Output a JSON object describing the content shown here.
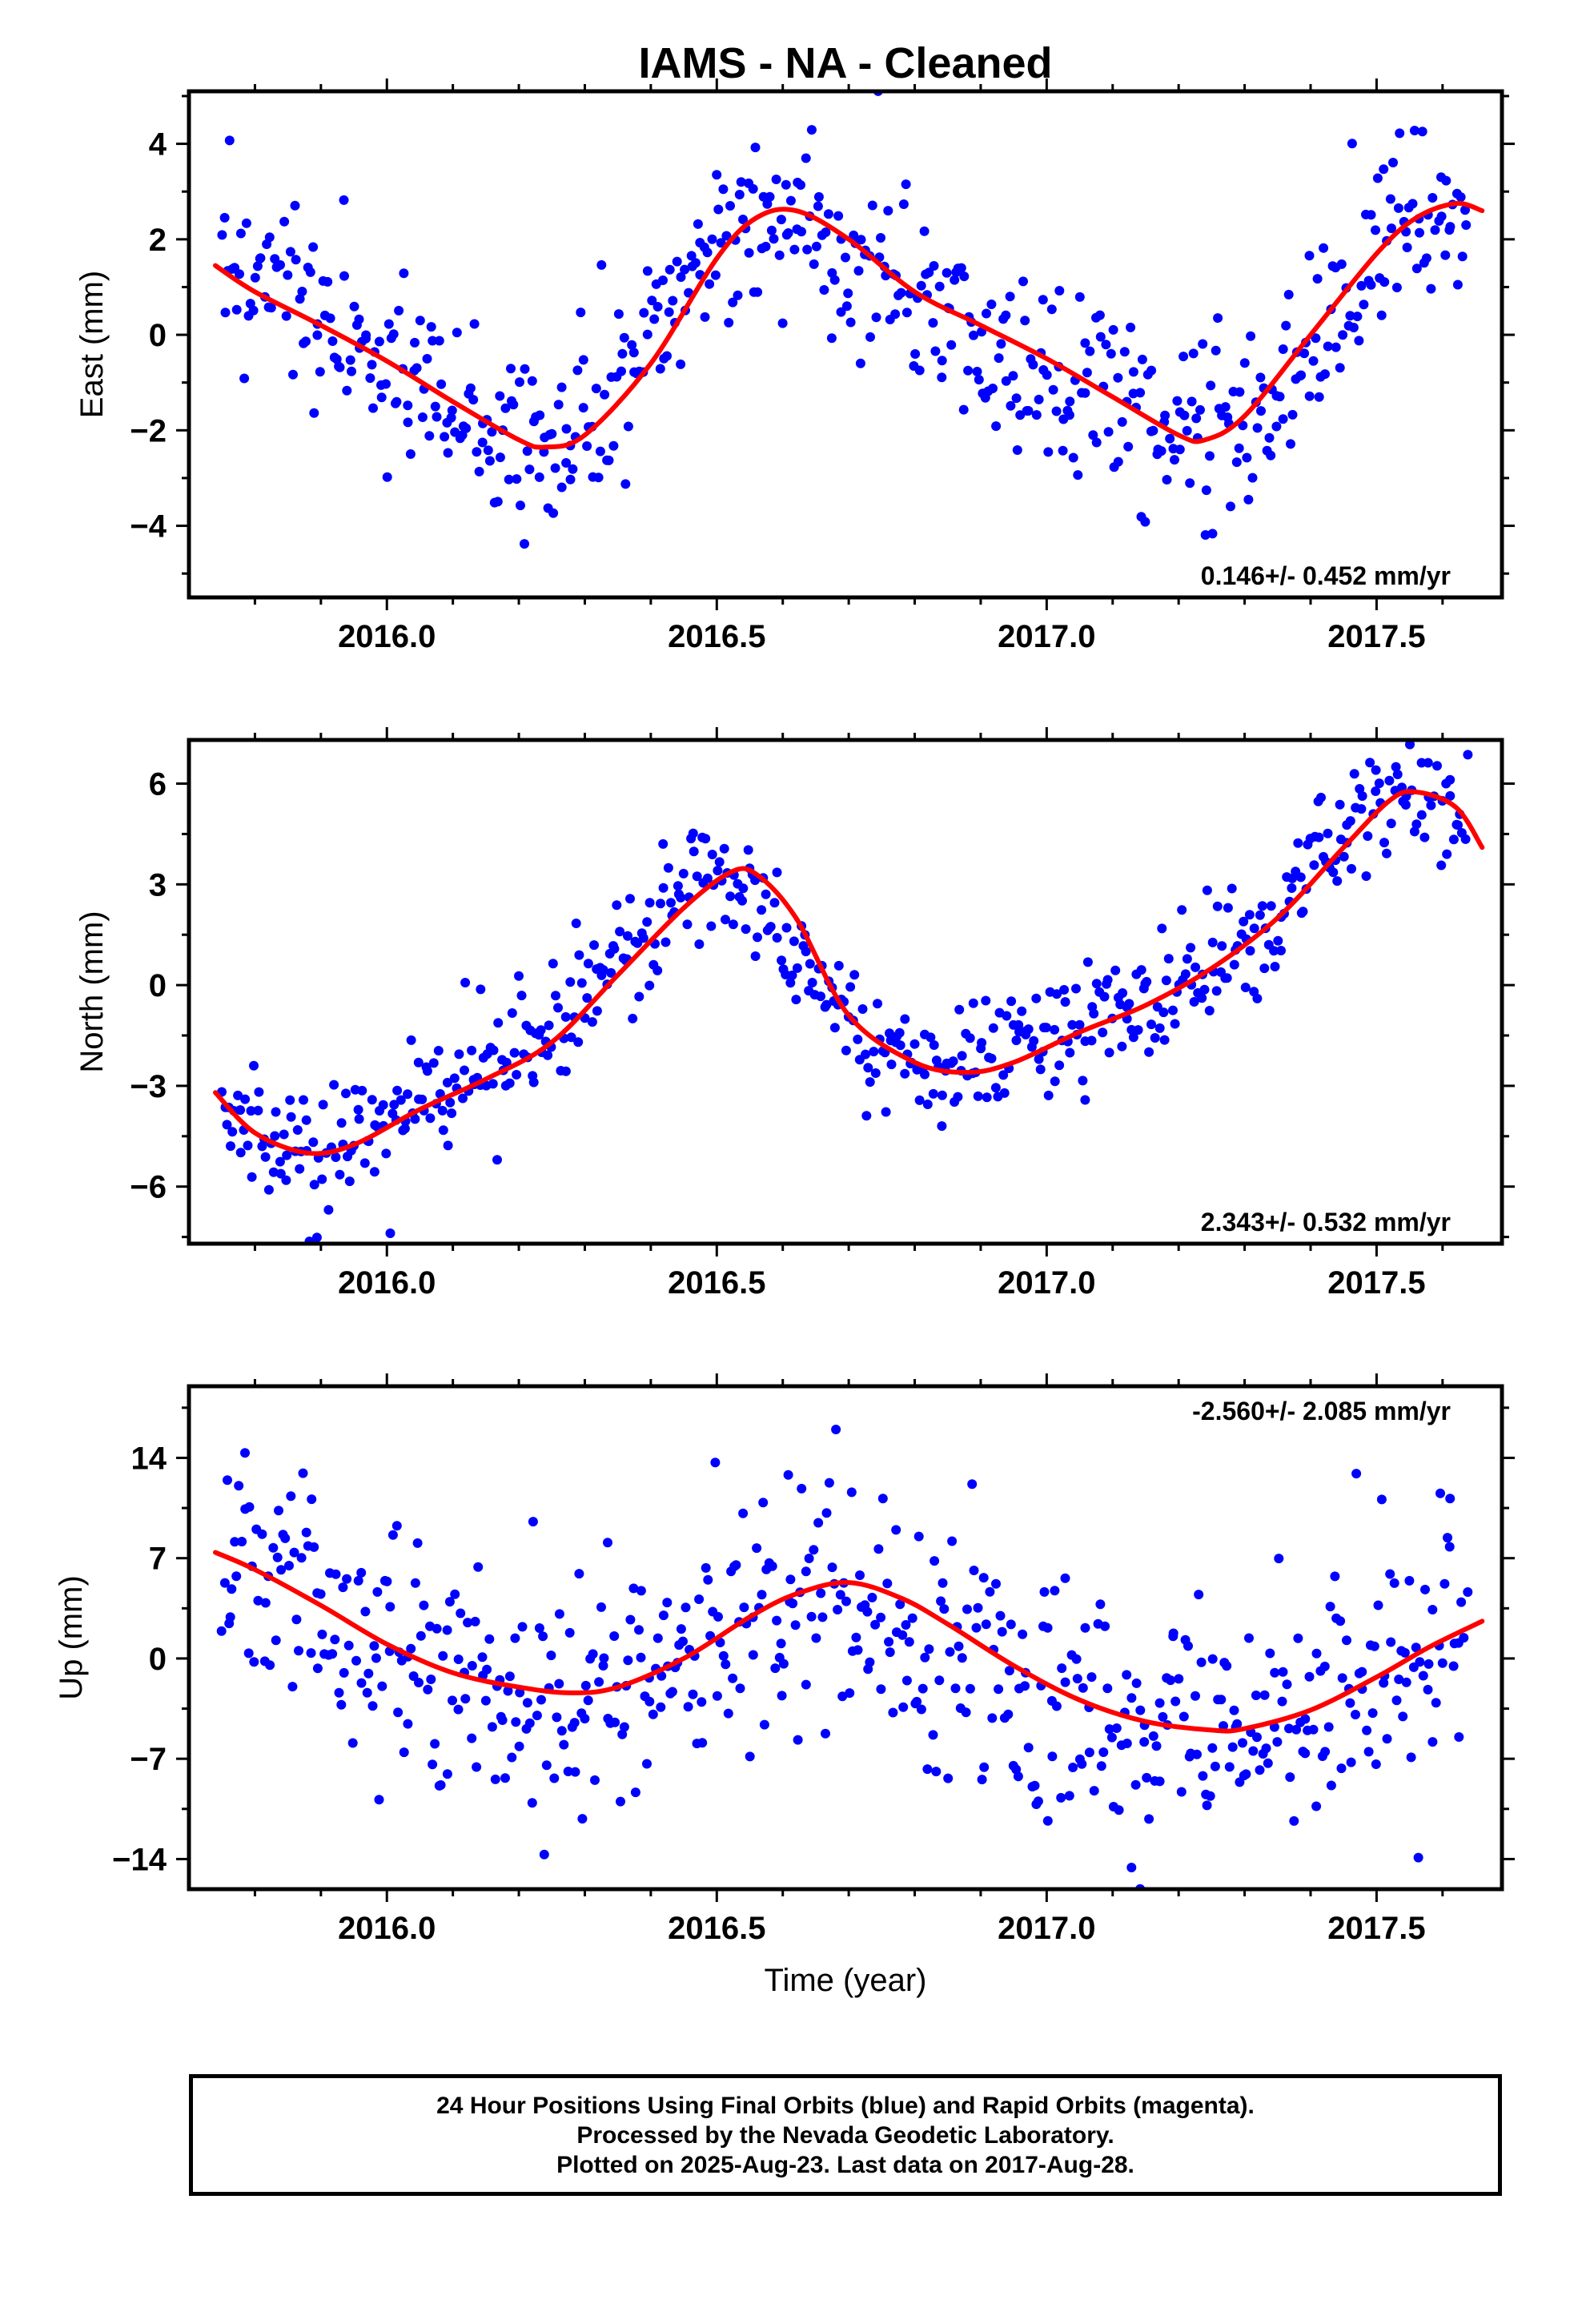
{
  "title": "IAMS  - NA - Cleaned",
  "xlabel": "Time (year)",
  "colors": {
    "points": "#0000ff",
    "fit": "#ff0000",
    "frame": "#000000"
  },
  "footer": {
    "line1": "24 Hour Positions Using Final Orbits (blue) and Rapid Orbits (magenta).",
    "line2": "Processed by the Nevada Geodetic Laboratory.",
    "line3": "Plotted on 2025-Aug-23. Last data on 2017-Aug-28."
  },
  "chart_data": [
    {
      "type": "scatter",
      "ylabel": "East (mm)",
      "rate_label": "0.146+/- 0.452 mm/yr",
      "rate_position": "bottom-right",
      "xlim": [
        2015.7,
        2017.69
      ],
      "ylim": [
        -5.5,
        5.1
      ],
      "x_ticks": [
        2016.0,
        2016.5,
        2017.0,
        2017.5
      ],
      "x_tick_labels": [
        "2016.0",
        "2016.5",
        "2017.0",
        "2017.5"
      ],
      "y_ticks": [
        -4,
        -2,
        0,
        2,
        4
      ],
      "y_tick_labels": [
        "−4",
        "−2",
        "0",
        "2",
        "4"
      ],
      "series": [
        {
          "kind": "points",
          "x": [
            2015.75,
            2015.78,
            2015.81,
            2015.84,
            2015.87,
            2015.9,
            2015.93,
            2015.96,
            2015.99,
            2016.02,
            2016.05,
            2016.08,
            2016.11,
            2016.14,
            2016.17,
            2016.2,
            2016.23,
            2016.26,
            2016.29,
            2016.32,
            2016.35,
            2016.38,
            2016.41,
            2016.44,
            2016.47,
            2016.5,
            2016.53,
            2016.56,
            2016.59,
            2016.62,
            2016.65,
            2016.68,
            2016.71,
            2016.74,
            2016.77,
            2016.8,
            2016.83,
            2016.86,
            2016.89,
            2016.92,
            2016.95,
            2016.98,
            2017.01,
            2017.04,
            2017.07,
            2017.1,
            2017.13,
            2017.16,
            2017.19,
            2017.22,
            2017.25,
            2017.28,
            2017.31,
            2017.34,
            2017.37,
            2017.4,
            2017.43,
            2017.46,
            2017.49,
            2017.52,
            2017.55,
            2017.58,
            2017.61,
            2017.64
          ],
          "y": [
            1.6,
            1.2,
            1.0,
            0.6,
            0.4,
            0.2,
            0.0,
            -0.2,
            -0.5,
            -0.8,
            -1.1,
            -1.5,
            -1.8,
            -2.1,
            -2.3,
            -2.4,
            -2.3,
            -2.1,
            -1.8,
            -1.4,
            -0.9,
            -0.3,
            0.3,
            0.9,
            1.5,
            2.0,
            2.4,
            2.6,
            2.6,
            2.5,
            2.2,
            1.8,
            1.4,
            1.1,
            0.8,
            0.6,
            0.4,
            0.2,
            0.0,
            -0.2,
            -0.4,
            -0.6,
            -0.8,
            -1.1,
            -1.4,
            -1.6,
            -1.8,
            -2.0,
            -2.2,
            -2.3,
            -2.2,
            -2.0,
            -1.7,
            -1.3,
            -0.8,
            -0.2,
            0.5,
            1.1,
            1.7,
            2.2,
            2.5,
            2.7,
            2.8,
            2.6
          ],
          "scatter_mm": 1.1
        },
        {
          "kind": "fit",
          "x": [
            2015.74,
            2015.8,
            2015.9,
            2016.0,
            2016.1,
            2016.2,
            2016.24,
            2016.3,
            2016.4,
            2016.5,
            2016.56,
            2016.62,
            2016.7,
            2016.8,
            2016.9,
            2017.0,
            2017.1,
            2017.2,
            2017.24,
            2017.3,
            2017.4,
            2017.5,
            2017.56,
            2017.62,
            2017.66
          ],
          "y": [
            1.45,
            0.9,
            0.2,
            -0.55,
            -1.4,
            -2.2,
            -2.35,
            -2.1,
            -0.6,
            1.6,
            2.45,
            2.6,
            2.0,
            0.9,
            0.2,
            -0.5,
            -1.3,
            -2.1,
            -2.2,
            -1.7,
            0.0,
            1.7,
            2.45,
            2.75,
            2.6
          ]
        }
      ]
    },
    {
      "type": "scatter",
      "ylabel": "North (mm)",
      "rate_label": "2.343+/- 0.532 mm/yr",
      "rate_position": "bottom-right",
      "xlim": [
        2015.7,
        2017.69
      ],
      "ylim": [
        -7.7,
        7.3
      ],
      "x_ticks": [
        2016.0,
        2016.5,
        2017.0,
        2017.5
      ],
      "x_tick_labels": [
        "2016.0",
        "2016.5",
        "2017.0",
        "2017.5"
      ],
      "y_ticks": [
        -6,
        -3,
        0,
        3,
        6
      ],
      "y_tick_labels": [
        "−6",
        "−3",
        "0",
        "3",
        "6"
      ],
      "series": [
        {
          "kind": "points",
          "x": [
            2015.75,
            2015.78,
            2015.81,
            2015.84,
            2015.87,
            2015.9,
            2015.93,
            2015.96,
            2015.99,
            2016.02,
            2016.05,
            2016.08,
            2016.11,
            2016.14,
            2016.17,
            2016.2,
            2016.23,
            2016.26,
            2016.29,
            2016.32,
            2016.35,
            2016.38,
            2016.41,
            2016.44,
            2016.47,
            2016.5,
            2016.53,
            2016.56,
            2016.59,
            2016.62,
            2016.65,
            2016.68,
            2016.71,
            2016.74,
            2016.77,
            2016.8,
            2016.83,
            2016.86,
            2016.89,
            2016.92,
            2016.95,
            2016.98,
            2017.01,
            2017.04,
            2017.07,
            2017.1,
            2017.13,
            2017.16,
            2017.19,
            2017.22,
            2017.25,
            2017.28,
            2017.31,
            2017.34,
            2017.37,
            2017.4,
            2017.43,
            2017.46,
            2017.49,
            2017.52,
            2017.55,
            2017.58,
            2017.61,
            2017.64
          ],
          "y": [
            -3.5,
            -4.2,
            -4.7,
            -5.0,
            -5.2,
            -5.1,
            -4.8,
            -4.5,
            -4.1,
            -3.7,
            -3.3,
            -3.0,
            -2.7,
            -2.5,
            -2.3,
            -2.0,
            -1.6,
            -1.1,
            -0.5,
            0.2,
            0.8,
            1.4,
            2.0,
            2.6,
            3.1,
            3.4,
            3.3,
            2.8,
            2.0,
            1.0,
            0.0,
            -0.9,
            -1.6,
            -2.1,
            -2.5,
            -2.6,
            -2.6,
            -2.5,
            -2.3,
            -2.0,
            -1.7,
            -1.5,
            -1.3,
            -1.1,
            -0.9,
            -0.7,
            -0.5,
            -0.3,
            -0.1,
            0.1,
            0.4,
            0.8,
            1.3,
            1.9,
            2.6,
            3.3,
            4.0,
            4.7,
            5.2,
            5.6,
            5.8,
            5.6,
            5.1,
            4.4
          ],
          "scatter_mm": 1.0
        },
        {
          "kind": "fit",
          "x": [
            2015.74,
            2015.8,
            2015.88,
            2015.95,
            2016.05,
            2016.15,
            2016.25,
            2016.35,
            2016.45,
            2016.52,
            2016.56,
            2016.62,
            2016.7,
            2016.8,
            2016.88,
            2016.95,
            2017.05,
            2017.15,
            2017.25,
            2017.35,
            2017.45,
            2017.52,
            2017.56,
            2017.62,
            2017.66
          ],
          "y": [
            -3.2,
            -4.4,
            -5.0,
            -4.75,
            -3.7,
            -2.8,
            -1.7,
            0.3,
            2.3,
            3.35,
            3.3,
            2.0,
            -0.9,
            -2.3,
            -2.6,
            -2.3,
            -1.4,
            -0.6,
            0.5,
            2.0,
            4.1,
            5.5,
            5.75,
            5.3,
            4.1
          ]
        }
      ]
    },
    {
      "type": "scatter",
      "ylabel": "Up (mm)",
      "rate_label": "-2.560+/- 2.085 mm/yr",
      "rate_position": "top-right",
      "xlim": [
        2015.7,
        2017.69
      ],
      "ylim": [
        -16.1,
        19.0
      ],
      "x_ticks": [
        2016.0,
        2016.5,
        2017.0,
        2017.5
      ],
      "x_tick_labels": [
        "2016.0",
        "2016.5",
        "2017.0",
        "2017.5"
      ],
      "y_ticks": [
        -14,
        -7,
        0,
        7,
        14
      ],
      "y_tick_labels": [
        "−14",
        "−7",
        "0",
        "7",
        "14"
      ],
      "series": [
        {
          "kind": "points",
          "x": [
            2015.75,
            2015.78,
            2015.81,
            2015.84,
            2015.87,
            2015.9,
            2015.93,
            2015.96,
            2015.99,
            2016.02,
            2016.05,
            2016.08,
            2016.11,
            2016.14,
            2016.17,
            2016.2,
            2016.23,
            2016.26,
            2016.29,
            2016.32,
            2016.35,
            2016.38,
            2016.41,
            2016.44,
            2016.47,
            2016.5,
            2016.53,
            2016.56,
            2016.59,
            2016.62,
            2016.65,
            2016.68,
            2016.71,
            2016.74,
            2016.77,
            2016.8,
            2016.83,
            2016.86,
            2016.89,
            2016.92,
            2016.95,
            2016.98,
            2017.01,
            2017.04,
            2017.07,
            2017.1,
            2017.13,
            2017.16,
            2017.19,
            2017.22,
            2017.25,
            2017.28,
            2017.31,
            2017.34,
            2017.37,
            2017.4,
            2017.43,
            2017.46,
            2017.49,
            2017.52,
            2017.55,
            2017.58,
            2017.61,
            2017.64
          ],
          "y": [
            7.2,
            6.6,
            5.9,
            5.1,
            4.2,
            3.3,
            2.4,
            1.5,
            0.6,
            -0.2,
            -0.9,
            -1.4,
            -1.8,
            -2.1,
            -2.3,
            -2.4,
            -2.5,
            -2.5,
            -2.4,
            -2.2,
            -1.8,
            -1.2,
            -0.5,
            0.3,
            1.2,
            2.1,
            3.0,
            3.8,
            4.5,
            5.0,
            5.2,
            5.1,
            4.7,
            4.0,
            3.1,
            2.1,
            1.1,
            0.2,
            -0.6,
            -1.4,
            -2.1,
            -2.7,
            -3.2,
            -3.7,
            -4.1,
            -4.5,
            -4.8,
            -5.0,
            -5.1,
            -5.2,
            -5.2,
            -5.1,
            -4.9,
            -4.6,
            -4.1,
            -3.5,
            -2.8,
            -2.1,
            -1.3,
            -0.5,
            0.3,
            1.0,
            1.7,
            2.3
          ],
          "scatter_mm": 4.6
        },
        {
          "kind": "fit",
          "x": [
            2015.74,
            2015.8,
            2015.9,
            2016.0,
            2016.1,
            2016.2,
            2016.28,
            2016.35,
            2016.45,
            2016.55,
            2016.62,
            2016.7,
            2016.78,
            2016.85,
            2016.95,
            2017.05,
            2017.15,
            2017.25,
            2017.3,
            2017.4,
            2017.5,
            2017.58,
            2017.66
          ],
          "y": [
            7.4,
            6.2,
            3.7,
            1.0,
            -1.0,
            -2.0,
            -2.4,
            -2.0,
            0.0,
            2.9,
            4.5,
            5.3,
            4.2,
            2.4,
            -0.5,
            -2.9,
            -4.4,
            -5.0,
            -4.9,
            -3.6,
            -1.3,
            0.8,
            2.6
          ]
        }
      ]
    }
  ]
}
